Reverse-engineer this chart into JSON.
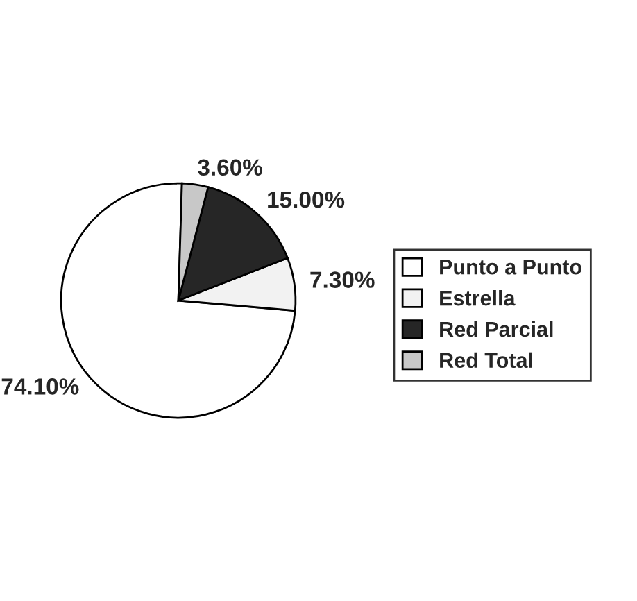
{
  "chart_data": {
    "type": "pie",
    "categories": [
      "Punto a Punto",
      "Estrella",
      "Red Parcial",
      "Red Total"
    ],
    "values": [
      74.1,
      7.3,
      15.0,
      3.6
    ],
    "value_labels": [
      "74.10%",
      "7.30%",
      "15.00%",
      "3.60%"
    ],
    "colors": [
      "#ffffff",
      "#f2f2f2",
      "#262626",
      "#c8c8c8"
    ],
    "legend": "right"
  }
}
